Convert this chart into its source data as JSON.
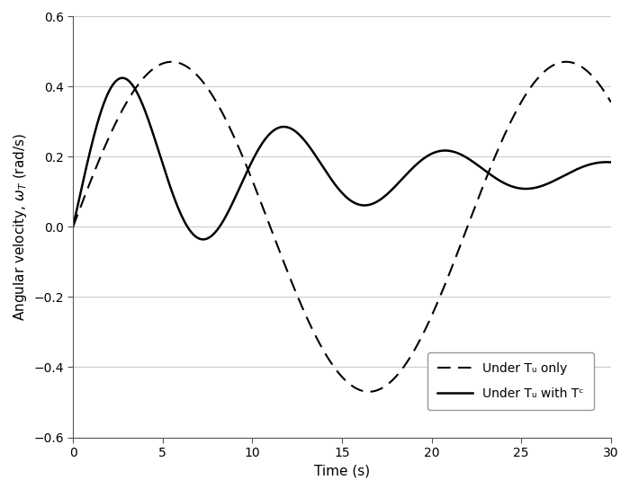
{
  "title": "",
  "xlabel": "Time (s)",
  "ylabel": "Angular velocity, ω_T (rad/s)",
  "xlim": [
    0,
    30
  ],
  "ylim": [
    -0.6,
    0.6
  ],
  "xticks": [
    0,
    5,
    10,
    15,
    20,
    25,
    30
  ],
  "yticks": [
    -0.6,
    -0.4,
    -0.2,
    0.0,
    0.2,
    0.4,
    0.6
  ],
  "legend_label_dashed": "Under Tᵤ only",
  "legend_label_solid": "Under Tᵤ with Tᶜ",
  "grid_color": "#cccccc",
  "line_color": "#000000",
  "background_color": "#ffffff",
  "dashed_amplitude": 0.47,
  "dashed_period": 22.0,
  "solid_A": 0.34,
  "solid_k": 0.08,
  "solid_D": 0.153,
  "solid_period": 8.0,
  "solid_peak_t": 4.5,
  "figsize": [
    7.0,
    5.44
  ],
  "dpi": 100
}
